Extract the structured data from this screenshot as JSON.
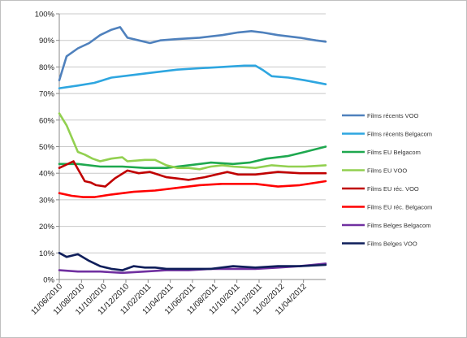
{
  "chart_data": {
    "type": "line",
    "title": "",
    "xlabel": "",
    "ylabel": "",
    "ylim": [
      0,
      100
    ],
    "y_ticks": [
      "0%",
      "10%",
      "20%",
      "30%",
      "40%",
      "50%",
      "60%",
      "70%",
      "80%",
      "90%",
      "100%"
    ],
    "x_ticks": [
      "11/06/2010",
      "11/08/2010",
      "11/10/2010",
      "11/12/2010",
      "11/02/2011",
      "11/04/2011",
      "11/06/2011",
      "11/08/2011",
      "11/10/2011",
      "11/12/2011",
      "11/02/2012",
      "11/04/2012"
    ],
    "grid": "horizontal",
    "legend_position": "right",
    "series": [
      {
        "name": "Films récents VOO",
        "color": "#4f81bd",
        "points": [
          [
            "2010-06-11",
            75
          ],
          [
            "2010-07-01",
            84
          ],
          [
            "2010-08-01",
            87
          ],
          [
            "2010-09-01",
            89
          ],
          [
            "2010-10-01",
            92
          ],
          [
            "2010-11-01",
            94
          ],
          [
            "2010-11-25",
            95
          ],
          [
            "2010-12-15",
            91
          ],
          [
            "2011-01-15",
            90
          ],
          [
            "2011-02-15",
            89
          ],
          [
            "2011-03-15",
            90
          ],
          [
            "2011-05-01",
            90.5
          ],
          [
            "2011-07-01",
            91
          ],
          [
            "2011-09-01",
            92
          ],
          [
            "2011-10-15",
            93
          ],
          [
            "2011-11-20",
            93.5
          ],
          [
            "2011-12-20",
            93
          ],
          [
            "2012-02-01",
            92
          ],
          [
            "2012-04-01",
            91
          ],
          [
            "2012-05-15",
            90
          ],
          [
            "2012-06-11",
            89.5
          ]
        ]
      },
      {
        "name": "Films récents Belgacom",
        "color": "#2ea6e0",
        "points": [
          [
            "2010-06-11",
            72
          ],
          [
            "2010-08-01",
            73
          ],
          [
            "2010-09-15",
            74
          ],
          [
            "2010-11-01",
            76
          ],
          [
            "2011-01-01",
            77
          ],
          [
            "2011-03-01",
            78
          ],
          [
            "2011-05-01",
            79
          ],
          [
            "2011-07-01",
            79.5
          ],
          [
            "2011-09-01",
            80
          ],
          [
            "2011-11-01",
            80.5
          ],
          [
            "2011-12-01",
            80.5
          ],
          [
            "2011-12-20",
            79
          ],
          [
            "2012-01-15",
            76.5
          ],
          [
            "2012-03-01",
            76
          ],
          [
            "2012-04-15",
            75
          ],
          [
            "2012-06-11",
            73.5
          ]
        ]
      },
      {
        "name": "Films EU Belgacom",
        "color": "#1ea84f",
        "points": [
          [
            "2010-06-11",
            43.5
          ],
          [
            "2010-08-01",
            43.5
          ],
          [
            "2010-10-01",
            42.5
          ],
          [
            "2010-12-01",
            42.5
          ],
          [
            "2011-02-01",
            42
          ],
          [
            "2011-04-01",
            42
          ],
          [
            "2011-06-01",
            43
          ],
          [
            "2011-08-01",
            44
          ],
          [
            "2011-10-01",
            43.5
          ],
          [
            "2011-11-15",
            44
          ],
          [
            "2012-01-01",
            45.5
          ],
          [
            "2012-03-01",
            46.5
          ],
          [
            "2012-04-15",
            48
          ],
          [
            "2012-06-11",
            50
          ]
        ]
      },
      {
        "name": "Films EU VOO",
        "color": "#92d050",
        "points": [
          [
            "2010-06-11",
            62.5
          ],
          [
            "2010-07-01",
            58
          ],
          [
            "2010-08-01",
            48
          ],
          [
            "2010-08-20",
            47
          ],
          [
            "2010-09-10",
            45.5
          ],
          [
            "2010-10-01",
            44.5
          ],
          [
            "2010-11-01",
            45.5
          ],
          [
            "2010-12-01",
            46
          ],
          [
            "2010-12-15",
            44.5
          ],
          [
            "2011-02-01",
            45
          ],
          [
            "2011-03-01",
            45
          ],
          [
            "2011-04-01",
            43
          ],
          [
            "2011-05-01",
            42
          ],
          [
            "2011-06-01",
            42
          ],
          [
            "2011-07-01",
            41.5
          ],
          [
            "2011-08-01",
            42.5
          ],
          [
            "2011-09-01",
            43
          ],
          [
            "2011-10-01",
            42.5
          ],
          [
            "2011-12-01",
            42
          ],
          [
            "2012-01-15",
            43
          ],
          [
            "2012-03-01",
            42.5
          ],
          [
            "2012-04-15",
            42.5
          ],
          [
            "2012-06-11",
            43
          ]
        ]
      },
      {
        "name": "Films EU réc. VOO",
        "color": "#c00000",
        "points": [
          [
            "2010-06-11",
            42
          ],
          [
            "2010-07-20",
            44.5
          ],
          [
            "2010-08-20",
            37
          ],
          [
            "2010-09-05",
            36.5
          ],
          [
            "2010-09-20",
            35.5
          ],
          [
            "2010-10-15",
            35
          ],
          [
            "2010-11-10",
            38
          ],
          [
            "2010-12-15",
            41
          ],
          [
            "2011-01-15",
            40
          ],
          [
            "2011-02-15",
            40.5
          ],
          [
            "2011-04-01",
            38.5
          ],
          [
            "2011-05-01",
            38
          ],
          [
            "2011-06-01",
            37.5
          ],
          [
            "2011-07-15",
            38.5
          ],
          [
            "2011-09-15",
            40.5
          ],
          [
            "2011-10-15",
            39.5
          ],
          [
            "2011-12-01",
            39.5
          ],
          [
            "2012-02-01",
            40.5
          ],
          [
            "2012-04-01",
            40
          ],
          [
            "2012-06-11",
            40
          ]
        ]
      },
      {
        "name": "Films EU réc. Belgacom",
        "color": "#ff0000",
        "points": [
          [
            "2010-06-11",
            32.5
          ],
          [
            "2010-07-15",
            31.5
          ],
          [
            "2010-08-15",
            31
          ],
          [
            "2010-09-15",
            31
          ],
          [
            "2010-11-01",
            32
          ],
          [
            "2011-01-01",
            33
          ],
          [
            "2011-03-01",
            33.5
          ],
          [
            "2011-05-01",
            34.5
          ],
          [
            "2011-07-01",
            35.5
          ],
          [
            "2011-09-01",
            36
          ],
          [
            "2011-12-01",
            36
          ],
          [
            "2012-02-01",
            35
          ],
          [
            "2012-04-01",
            35.5
          ],
          [
            "2012-06-11",
            37
          ]
        ]
      },
      {
        "name": "Films Belges Belgacom",
        "color": "#7030a0",
        "points": [
          [
            "2010-06-11",
            3.5
          ],
          [
            "2010-08-01",
            3
          ],
          [
            "2010-10-01",
            3
          ],
          [
            "2010-12-01",
            2.5
          ],
          [
            "2011-02-01",
            3
          ],
          [
            "2011-04-01",
            3.5
          ],
          [
            "2011-06-01",
            3.5
          ],
          [
            "2011-08-01",
            4
          ],
          [
            "2011-10-01",
            4
          ],
          [
            "2011-12-01",
            4
          ],
          [
            "2012-02-01",
            4.5
          ],
          [
            "2012-04-01",
            5
          ],
          [
            "2012-06-11",
            6
          ]
        ]
      },
      {
        "name": "Films Belges VOO",
        "color": "#0f1e5a",
        "points": [
          [
            "2010-06-11",
            10
          ],
          [
            "2010-07-01",
            8.5
          ],
          [
            "2010-08-01",
            9.5
          ],
          [
            "2010-09-01",
            7
          ],
          [
            "2010-10-01",
            5
          ],
          [
            "2010-11-01",
            4
          ],
          [
            "2010-12-01",
            3.5
          ],
          [
            "2011-01-01",
            5
          ],
          [
            "2011-02-01",
            4.5
          ],
          [
            "2011-03-01",
            4.5
          ],
          [
            "2011-04-01",
            4
          ],
          [
            "2011-06-01",
            4
          ],
          [
            "2011-08-01",
            4
          ],
          [
            "2011-10-01",
            5
          ],
          [
            "2011-12-01",
            4.5
          ],
          [
            "2012-02-01",
            5
          ],
          [
            "2012-04-01",
            5
          ],
          [
            "2012-06-11",
            5.5
          ]
        ]
      }
    ]
  }
}
